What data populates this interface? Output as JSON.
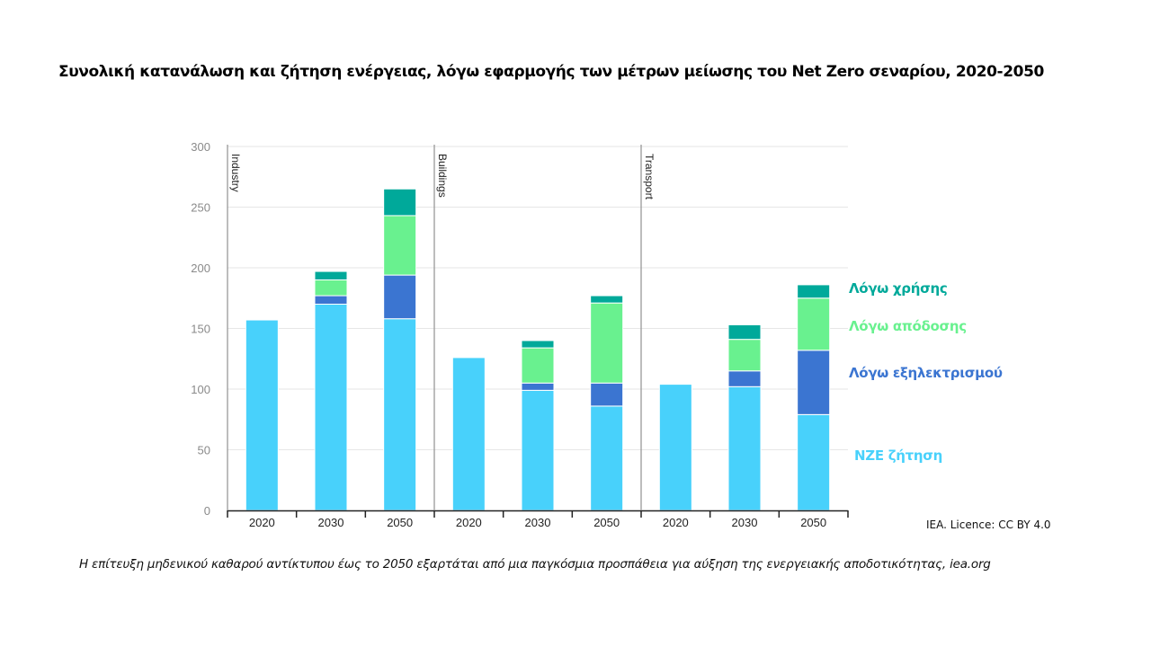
{
  "title": "Συνολική κατανάλωση και ζήτηση ενέργειας, λόγω εφαρμογής των μέτρων μείωσης του Net Zero σεναρίου, 2020-2050",
  "source": "IEA. Licence: CC BY 4.0",
  "caption": "Η επίτευξη μηδενικού καθαρού αντίκτυπου έως το 2050 εξαρτάται από μια παγκόσμια προσπάθεια για αύξηση της ενεργειακής αποδοτικότητας, iea.org",
  "legend": [
    {
      "label": "Λόγω χρήσης",
      "color": "#00a99a"
    },
    {
      "label": "Λόγω απόδοσης",
      "color": "#69f18f"
    },
    {
      "label": "Λόγω εξηλεκτρισμού",
      "color": "#3b75d1"
    },
    {
      "label": "NZE ζήτηση",
      "color": "#48d1fb"
    }
  ],
  "chart_data": {
    "type": "bar",
    "stacked": true,
    "title": "Συνολική κατανάλωση και ζήτηση ενέργειας, λόγω εφαρμογής των μέτρων μείωσης του Net Zero σεναρίου, 2020-2050",
    "xlabel": "",
    "ylabel": "",
    "ylim": [
      0,
      300
    ],
    "yticks": [
      0,
      50,
      100,
      150,
      200,
      250,
      300
    ],
    "grid": true,
    "legend_position": "right",
    "panels": [
      "Industry",
      "Buildings",
      "Transport"
    ],
    "categories": [
      "2020",
      "2030",
      "2050",
      "2020",
      "2030",
      "2050",
      "2020",
      "2030",
      "2050"
    ],
    "category_panels": [
      "Industry",
      "Industry",
      "Industry",
      "Buildings",
      "Buildings",
      "Buildings",
      "Transport",
      "Transport",
      "Transport"
    ],
    "series": [
      {
        "name": "NZE ζήτηση",
        "color": "#48d1fb",
        "values": [
          157,
          170,
          158,
          126,
          99,
          86,
          104,
          102,
          79
        ]
      },
      {
        "name": "Λόγω εξηλεκτρισμού",
        "color": "#3b75d1",
        "values": [
          0,
          7,
          36,
          0,
          6,
          19,
          0,
          13,
          53
        ]
      },
      {
        "name": "Λόγω απόδοσης",
        "color": "#69f18f",
        "values": [
          0,
          13,
          49,
          0,
          29,
          66,
          0,
          26,
          43
        ]
      },
      {
        "name": "Λόγω χρήσης",
        "color": "#00a99a",
        "values": [
          0,
          7,
          22,
          0,
          6,
          6,
          0,
          12,
          11
        ]
      }
    ]
  }
}
